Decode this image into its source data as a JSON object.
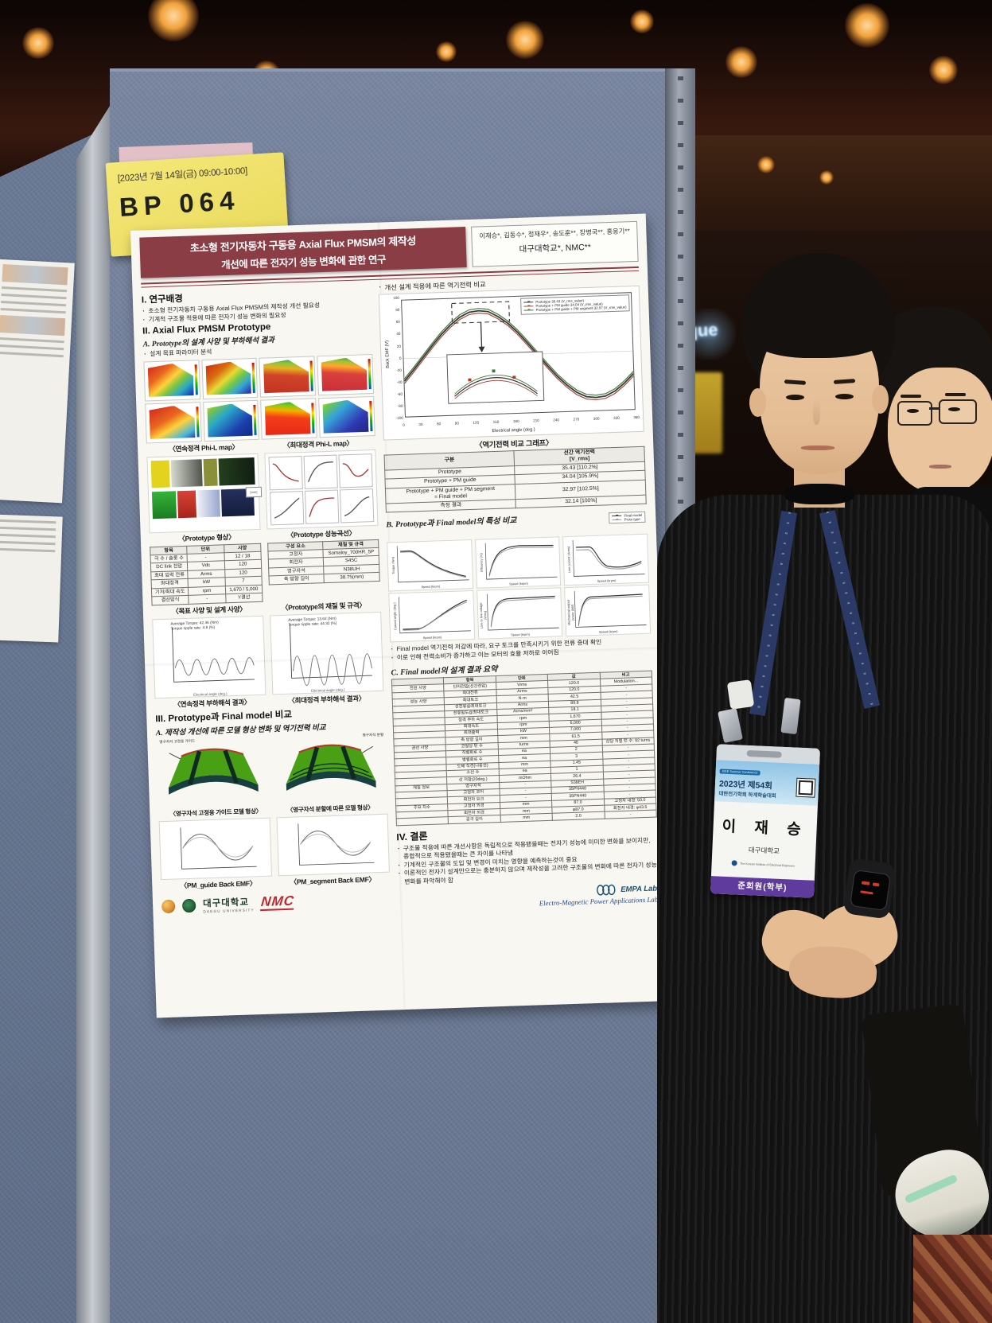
{
  "note": {
    "schedule": "[2023년 7월 14일(금) 09:00-10:00]",
    "code": "BP 064"
  },
  "background": {
    "banner_text": "que"
  },
  "poster": {
    "title": {
      "line1": "초소형 전기자동차 구동용 Axial Flux PMSM의 제작성",
      "line2": "개선에 따른 전자기 성능 변화에 관한 연구"
    },
    "authors": "이재승*, 김동수*, 정재우*, 송도훈**, 장병국**, 홍웅기**",
    "affiliation": "대구대학교*, NMC**",
    "sec1": {
      "heading": "I. 연구배경",
      "bullets": [
        "초소형 전기자동차 구동용 Axial Flux PMSM의 제작성 개선 필요성",
        "기계적 구조물 적용에 따른 전자기 성능 변화의 필요성"
      ]
    },
    "sec2": {
      "heading": "II. Axial Flux PMSM Prototype",
      "sub_a": "A. Prototype의 설계 사양 및 부하해석 결과",
      "bullet": "설계 목표 파라미터 분석",
      "cap_phil_cont": "〈연속정격 Phi-L map〉",
      "cap_phil_max": "〈최대정격 Phi-L map〉",
      "cap_shape": "〈Prototype 형상〉",
      "cap_curves": "〈Prototype 성능곡선〉",
      "cap_spec": "〈목표 사양 및 설계 사양〉",
      "cap_material": "〈Prototype의 재질 및 규격〉",
      "cap_load_cont": "〈연속정격 부하해석 결과〉",
      "cap_load_max": "〈최대정격 부하해석 결과〉",
      "load_cont_note1": "Average Torque: 42.36 (Nm)",
      "load_cont_note2": "Torque ripple rate: 4.8 (%)",
      "load_max_note1": "Average Torque: 13.62 (Nm)",
      "load_max_note2": "Torque ripple rate: 44.32 (%)",
      "axis_angle": "Electrical angle (deg.)",
      "mm_tag": "[mm]"
    },
    "spec_table": {
      "headers": [
        "항목",
        "단위",
        "사양"
      ],
      "rows": [
        [
          "극 수 / 슬롯 수",
          "-",
          "12 / 18"
        ],
        [
          "DC link 전압",
          "Vdc",
          "120"
        ],
        [
          "최대 입력 전류",
          "Arms",
          "120"
        ],
        [
          "최대정격",
          "kW",
          "7"
        ],
        [
          "기저/최대 속도",
          "rpm",
          "1,670 / 5,000"
        ],
        [
          "결선방식",
          "-",
          "Y결선"
        ]
      ]
    },
    "material_table": {
      "headers": [
        "구성 요소",
        "재질 및 규격"
      ],
      "rows": [
        [
          "고정자",
          "Somaloy_700HR_5P"
        ],
        [
          "회전자",
          "S45C"
        ],
        [
          "영구자석",
          "N38UH"
        ],
        [
          "축 방향 길이",
          "38.75(mm)"
        ]
      ]
    },
    "sec3": {
      "heading": "III. Prototype과 Final model 비교",
      "sub_a": "A. 제작성 개선에 따른 모델 형상 변화 및 역기전력 비교",
      "callout_guide": "영구자석 고정용 가이드",
      "callout_segment": "영구자석 분할",
      "cap_model_guide": "〈영구자석 고정용 가이드 모델 형상〉",
      "cap_model_segment": "〈영구자석 분할에 따른 모델 형상〉",
      "cap_emf_guide": "〈PM_guide Back EMF〉",
      "cap_emf_segment": "〈PM_segment Back EMF〉"
    },
    "right": {
      "bullet_top": "개선 설계 적용에 따른 역기전력 비교",
      "chart": {
        "ylabel": "Back EMF (V)",
        "xlabel": "Electrical angle (deg.)",
        "legend": [
          "Prototype 35.43 (V_rms_value)",
          "Prototype + PM guide 34.04 (V_rms_value)",
          "Prototype + PM guide + PM segment 32.97 (V_rms_value)"
        ],
        "yticks": [
          "100",
          "80",
          "60",
          "40",
          "20",
          "0",
          "-20",
          "-40",
          "-60",
          "-80",
          "-100"
        ],
        "xticks": [
          "0",
          "30",
          "60",
          "90",
          "120",
          "150",
          "180",
          "210",
          "240",
          "270",
          "300",
          "330",
          "360"
        ]
      },
      "cap_chart": "〈역기전력 비교 그래프〉",
      "backemf_table": {
        "headers": [
          "구분",
          "선간 역기전력\n[V_rms]"
        ],
        "rows": [
          [
            "Prototype",
            "35.43 [110.2%]"
          ],
          [
            "Prototype + PM guide",
            "34.04 [105.9%]"
          ],
          [
            "Prototype + PM guide + PM segment\n= Final model",
            "32.97 [102.5%]"
          ],
          [
            "측정 결과",
            "32.14 [100%]"
          ]
        ]
      },
      "secB": "B. Prototype과 Final model의 특성 비교",
      "legendB": [
        "Final model",
        "Proto type"
      ],
      "b_plots": [
        {
          "ylabel": "Torque (Nm)"
        },
        {
          "ylabel": "Efficiency (%)"
        },
        {
          "ylabel": "Line current (Arms)"
        },
        {
          "ylabel": "Current angle (deg.)"
        },
        {
          "ylabel": "Line to line voltage (Vrms)"
        },
        {
          "ylabel": "Mechanical output power (kW)"
        }
      ],
      "xlabel_speed": "Speed (krpm)",
      "bullets_b": [
        "Final model 역기전력 저감에 따라, 요구 토크를 만족시키기 위한 전류 증대 확인",
        "이로 인해 전력소비가 증가하고 이는 모터의 효율 저하로 이어짐"
      ],
      "secC": "C. Final model의 설계 결과 요약",
      "final_table": {
        "headers": [
          "",
          "항목",
          "단위",
          "값",
          "비고"
        ],
        "rows": [
          [
            "전원 사양",
            "단자전압(선간전압)",
            "Vrms",
            "120.0",
            "Modulation..."
          ],
          [
            "",
            "최대전류",
            "Arms",
            "120.0",
            "-"
          ],
          [
            "성능 사양",
            "최대토크",
            "N·m",
            "42.5",
            "-"
          ],
          [
            "",
            "선전류@최대토크",
            "Arms",
            "89.8",
            "-"
          ],
          [
            "",
            "전류밀도@최대토크",
            "Arms/mm²",
            "18.1",
            "-"
          ],
          [
            "",
            "정격 부하 속도",
            "rpm",
            "1,670",
            "-"
          ],
          [
            "",
            "최대속도",
            "rpm",
            "6,000",
            "-"
          ],
          [
            "",
            "최대출력",
            "kW",
            "7,000",
            "-"
          ],
          [
            "",
            "축 방향 길이",
            "mm",
            "61.5",
            "-"
          ],
          [
            "권선 사양",
            "코일당 턴 수",
            "turns",
            "46",
            "상당 직렬 턴 수: 92 turns"
          ],
          [
            "",
            "직렬회로 수",
            "ea",
            "2",
            "-"
          ],
          [
            "",
            "병렬회로 수",
            "ea",
            "3",
            "-"
          ],
          [
            "",
            "도체 직경(나동선)",
            "mm",
            "1.45",
            "-"
          ],
          [
            "",
            "소선 수",
            "ea",
            "1",
            "-"
          ],
          [
            "",
            "상 저항(20deg.)",
            "mOhm",
            "26.4",
            "-"
          ],
          [
            "재질 정보",
            "영구자석",
            "-",
            "S38EH",
            "-"
          ],
          [
            "",
            "고정자 코어",
            "-",
            "35PN440",
            "-"
          ],
          [
            "",
            "회전자 요크",
            "-",
            "35PN440",
            "-"
          ],
          [
            "주요 치수",
            "고정자 외경",
            "mm",
            "87.0",
            "고정자 내경: 50.0"
          ],
          [
            "",
            "회전자 외경",
            "mm",
            "φ87.0",
            "회전자 내경: φ43.5"
          ],
          [
            "",
            "공극 길이",
            "mm",
            "2.0",
            "-"
          ]
        ]
      },
      "secIV": "IV. 결론",
      "bullets_iv": [
        "구조물 적용에 따른 개선사항은 독립적으로 적용됐을때는 전자기 성능에 미미한 변화를 보이지만, 종합적으로 적용됐을때는 큰 차이를 나타냄",
        "기계적인 구조물의 도입 및 변경이 미치는 영향을 예측하는것이 중요",
        "이론적인 전자기 설계만으로는 충분하지 않으며 제작성을 고려한 구조물의 변화에 따른 전자기 성능 변화를 파악해야 함"
      ]
    },
    "logos": {
      "daegu_kr": "대구대학교",
      "daegu_en": "DAEGU UNIVERSITY",
      "nmc": "NMC",
      "empa": "EMPA Lab.",
      "empa_script": "Electro-Magnetic Power Applications Lab."
    }
  },
  "badge": {
    "header_small": "KIEE Summer Conference",
    "line1": "2023년 제54회",
    "line2": "대한전기학회 하계학술대회",
    "name": "이 재 승",
    "affiliation": "대구대학교",
    "org": "The Korean Institute of Electrical Engineers",
    "grade": "준회원(학부)"
  },
  "chart_data": {
    "type": "line",
    "title": "역기전력 비교 그래프",
    "xlabel": "Electrical angle (deg.)",
    "ylabel": "Back EMF (V)",
    "xlim": [
      0,
      360
    ],
    "ylim": [
      -100,
      100
    ],
    "x": [
      0,
      30,
      60,
      90,
      120,
      150,
      180,
      210,
      240,
      270,
      300,
      330,
      360
    ],
    "series": [
      {
        "name": "Prototype 35.43 (V_rms_value)",
        "values": [
          -25.1,
          0,
          25.1,
          43.4,
          50.1,
          43.4,
          25.1,
          0,
          -25.1,
          -43.4,
          -50.1,
          -43.4,
          -25.1
        ]
      },
      {
        "name": "Prototype + PM guide 34.04 (V_rms_value)",
        "values": [
          -24.1,
          0,
          24.1,
          41.7,
          48.1,
          41.7,
          24.1,
          0,
          -24.1,
          -41.7,
          -48.1,
          -41.7,
          -24.1
        ]
      },
      {
        "name": "Prototype + PM guide + PM segment 32.97 (V_rms_value)",
        "values": [
          -23.3,
          0,
          23.3,
          40.4,
          46.6,
          40.4,
          23.3,
          0,
          -23.3,
          -40.4,
          -46.6,
          -40.4,
          -23.3
        ]
      }
    ],
    "legend_position": "upper right",
    "grid": false
  }
}
